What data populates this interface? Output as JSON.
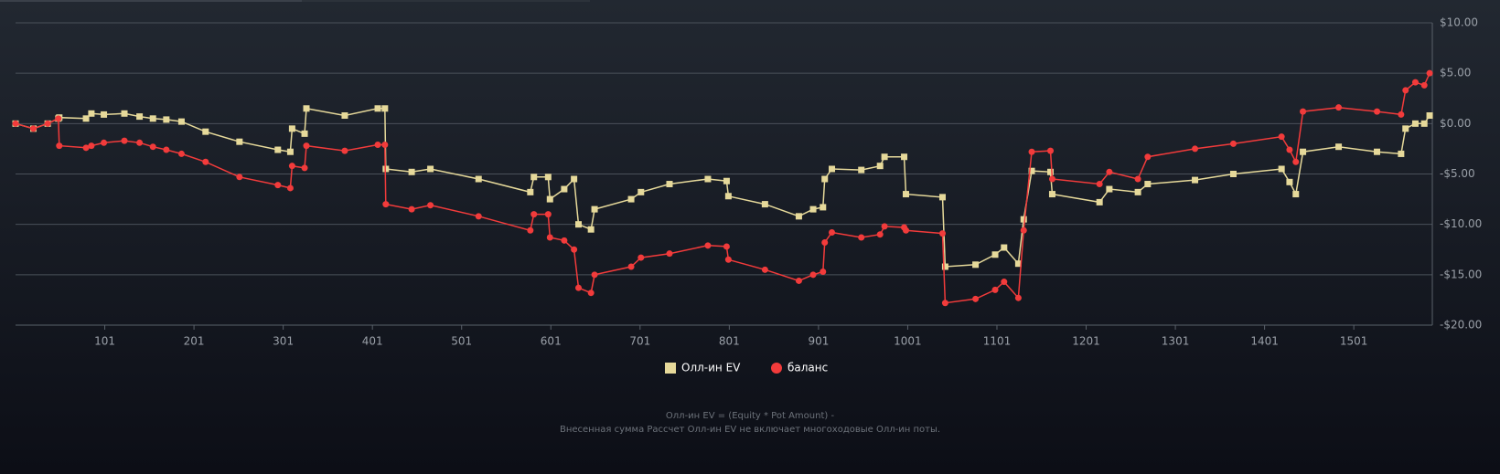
{
  "chart_data": {
    "type": "line",
    "x": [
      1,
      21,
      37,
      49,
      50,
      80,
      86,
      100,
      123,
      140,
      155,
      170,
      187,
      214,
      252,
      295,
      309,
      311,
      325,
      327,
      370,
      407,
      415,
      416,
      445,
      466,
      520,
      578,
      582,
      598,
      600,
      616,
      627,
      632,
      646,
      650,
      691,
      702,
      734,
      777,
      798,
      800,
      841,
      879,
      895,
      906,
      908,
      916,
      949,
      970,
      975,
      997,
      999,
      1040,
      1043,
      1077,
      1099,
      1109,
      1125,
      1131,
      1140,
      1161,
      1163,
      1216,
      1227,
      1259,
      1270,
      1323,
      1366,
      1420,
      1429,
      1436,
      1444,
      1484,
      1527,
      1554,
      1559,
      1570,
      1580,
      1586
    ],
    "series": [
      {
        "name": "Олл-ин EV",
        "color": "#e6d99a",
        "marker": "square",
        "values": [
          0,
          -0.5,
          0,
          0.5,
          0.6,
          0.5,
          1.0,
          0.9,
          1.0,
          0.7,
          0.5,
          0.4,
          0.2,
          -0.8,
          -1.8,
          -2.6,
          -2.8,
          -0.5,
          -1.0,
          1.5,
          0.8,
          1.5,
          1.5,
          -4.5,
          -4.8,
          -4.5,
          -5.5,
          -6.8,
          -5.3,
          -5.3,
          -7.5,
          -6.5,
          -5.5,
          -10,
          -10.5,
          -8.5,
          -7.5,
          -6.8,
          -6.0,
          -5.5,
          -5.7,
          -7.2,
          -8.0,
          -9.2,
          -8.5,
          -8.3,
          -5.5,
          -4.5,
          -4.6,
          -4.2,
          -3.3,
          -3.3,
          -7.0,
          -7.3,
          -14.2,
          -14.0,
          -13.0,
          -12.3,
          -13.9,
          -9.5,
          -4.7,
          -4.8,
          -7.0,
          -7.8,
          -6.5,
          -6.8,
          -6.0,
          -5.6,
          -5.0,
          -4.5,
          -5.8,
          -7.0,
          -2.8,
          -2.3,
          -2.8,
          -3.0,
          -0.5,
          0.0,
          0.0,
          0.8
        ]
      },
      {
        "name": "баланс",
        "color": "#f23b3b",
        "marker": "circle",
        "values": [
          0,
          -0.5,
          0,
          0.5,
          -2.2,
          -2.4,
          -2.2,
          -1.9,
          -1.7,
          -1.9,
          -2.3,
          -2.6,
          -3.0,
          -3.8,
          -5.3,
          -6.1,
          -6.4,
          -4.2,
          -4.4,
          -2.2,
          -2.7,
          -2.1,
          -2.1,
          -8.0,
          -8.5,
          -8.1,
          -9.2,
          -10.6,
          -9.0,
          -9.0,
          -11.3,
          -11.6,
          -12.5,
          -16.3,
          -16.8,
          -15.0,
          -14.2,
          -13.3,
          -12.9,
          -12.1,
          -12.2,
          -13.5,
          -14.5,
          -15.6,
          -15.0,
          -14.7,
          -11.8,
          -10.8,
          -11.3,
          -11.0,
          -10.2,
          -10.3,
          -10.6,
          -10.9,
          -17.8,
          -17.4,
          -16.5,
          -15.7,
          -17.3,
          -10.6,
          -2.8,
          -2.7,
          -5.5,
          -6.0,
          -4.8,
          -5.5,
          -3.3,
          -2.5,
          -2.0,
          -1.3,
          -2.6,
          -3.8,
          1.2,
          1.6,
          1.2,
          0.9,
          3.3,
          4.1,
          3.8,
          5.0
        ]
      }
    ],
    "xlim": [
      1,
      1589
    ],
    "xticks": [
      101,
      201,
      301,
      401,
      501,
      601,
      701,
      801,
      901,
      1001,
      1101,
      1201,
      1301,
      1401,
      1501
    ],
    "ylim": [
      -20,
      10
    ],
    "yticks": [
      {
        "value": 10,
        "label": "$10.00"
      },
      {
        "value": 5,
        "label": "$5.00"
      },
      {
        "value": 0,
        "label": "$0.00"
      },
      {
        "value": -5,
        "label": "-$5.00"
      },
      {
        "value": -10,
        "label": "-$10.00"
      },
      {
        "value": -15,
        "label": "-$15.00"
      },
      {
        "value": -20,
        "label": "-$20.00"
      }
    ],
    "grid": true,
    "legend": "bottom",
    "notes": [
      "Олл-ин EV = (Equity * Pot Amount) -",
      "Внесенная сумма Рассчет Олл-ин EV не включает многоходовые Олл-ин поты."
    ]
  }
}
